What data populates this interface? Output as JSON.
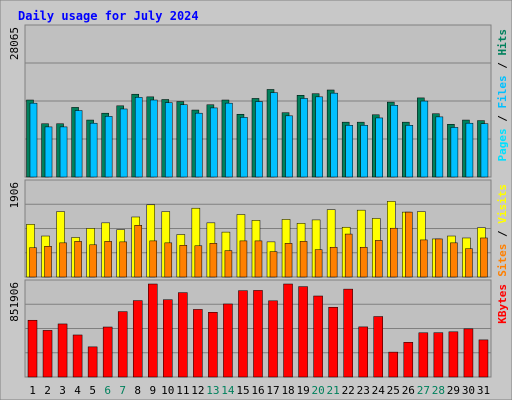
{
  "chart_data": {
    "title": "Daily usage for July 2024",
    "days": [
      "1",
      "2",
      "3",
      "4",
      "5",
      "6",
      "7",
      "8",
      "9",
      "10",
      "11",
      "12",
      "13",
      "14",
      "15",
      "16",
      "17",
      "18",
      "19",
      "20",
      "21",
      "22",
      "23",
      "24",
      "25",
      "26",
      "27",
      "28",
      "29",
      "30",
      "31"
    ],
    "weekend_days": [
      "6",
      "7",
      "13",
      "14",
      "20",
      "21",
      "27",
      "28"
    ],
    "colors": {
      "title": "#0000ff",
      "background": "#c0c0c0",
      "hits": "#00805c",
      "files": "#00c0ff",
      "pages": "#00e0ff",
      "visits": "#ffff00",
      "sites": "#ff8000",
      "kbytes": "#ff0000",
      "weekend_label": "#00805c"
    },
    "panels": [
      {
        "type": "bar",
        "max_label": "28065",
        "ymax": 28065,
        "legend": [
          "Pages",
          "Files",
          "Hits"
        ],
        "series": [
          {
            "name": "Hits",
            "values": [
              14600,
              10100,
              10100,
              13200,
              10800,
              12100,
              13500,
              15700,
              15200,
              14700,
              14300,
              12700,
              13700,
              14600,
              11900,
              14900,
              16600,
              12200,
              15500,
              15800,
              16500,
              10400,
              10400,
              11800,
              14200,
              10400,
              15000,
              12000,
              10000,
              10800,
              10700
            ]
          },
          {
            "name": "Files",
            "values": [
              14000,
              9500,
              9500,
              12600,
              10200,
              11500,
              12900,
              15100,
              14600,
              14100,
              13700,
              12100,
              13100,
              14000,
              11300,
              14300,
              16000,
              11600,
              14900,
              15200,
              15900,
              9800,
              9800,
              11200,
              13600,
              9800,
              14400,
              11400,
              9400,
              10200,
              10100
            ]
          }
        ]
      },
      {
        "type": "bar",
        "max_label": "1906",
        "ymax": 1906,
        "legend": [
          "Sites",
          "Visits"
        ],
        "series": [
          {
            "name": "Visits",
            "values": [
              1080,
              840,
              1340,
              810,
              996,
              1110,
              970,
              1230,
              1480,
              1340,
              870,
              1410,
              1110,
              920,
              1280,
              1160,
              720,
              1180,
              1100,
              1170,
              1380,
              1020,
              1370,
              1200,
              1550,
              1330,
              1340,
              780,
              840,
              800,
              1010
            ]
          },
          {
            "name": "Sites",
            "values": [
              600,
              630,
              700,
              730,
              660,
              730,
              720,
              1060,
              740,
              700,
              650,
              640,
              690,
              540,
              740,
              740,
              520,
              690,
              730,
              560,
              610,
              880,
              610,
              750,
              1000,
              1330,
              760,
              780,
              700,
              580,
              800
            ]
          }
        ]
      },
      {
        "type": "bar",
        "max_label": "851906",
        "ymax": 851906,
        "legend": [
          "KBytes"
        ],
        "series": [
          {
            "name": "KBytes",
            "values": [
              520000,
              427000,
              486000,
              385000,
              276000,
              458000,
              599000,
              700000,
              851906,
              708000,
              773000,
              619000,
              593000,
              669000,
              791000,
              793000,
              698000,
              851906,
              828000,
              742000,
              639000,
              805000,
              459000,
              554000,
              228000,
              318000,
              405000,
              406000,
              414000,
              441000,
              340000
            ]
          }
        ]
      }
    ]
  }
}
